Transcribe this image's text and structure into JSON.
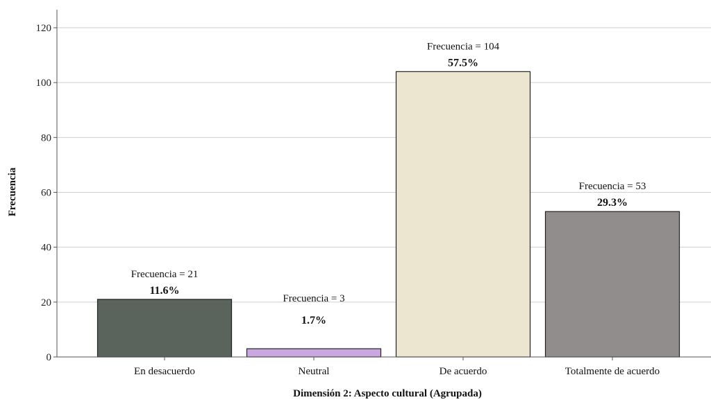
{
  "chart_data": {
    "type": "bar",
    "categories": [
      "En desacuerdo",
      "Neutral",
      "De acuerdo",
      "Totalmente de acuerdo"
    ],
    "values": [
      21,
      3,
      104,
      53
    ],
    "freq_labels": [
      "Frecuencia = 21",
      "Frecuencia = 3",
      "Frecuencia = 104",
      "Frecuencia = 53"
    ],
    "pct_labels": [
      "11.6%",
      "1.7%",
      "57.5%",
      "29.3%"
    ],
    "colors": [
      "#5a635c",
      "#c9a8e2",
      "#ece5cf",
      "#918d8c"
    ],
    "xlabel": "Dimensión 2: Aspecto cultural (Agrupada)",
    "ylabel": "Frecuencia",
    "ylim": [
      0,
      120
    ],
    "yticks": [
      0,
      20,
      40,
      60,
      80,
      100,
      120
    ],
    "grid": true
  }
}
